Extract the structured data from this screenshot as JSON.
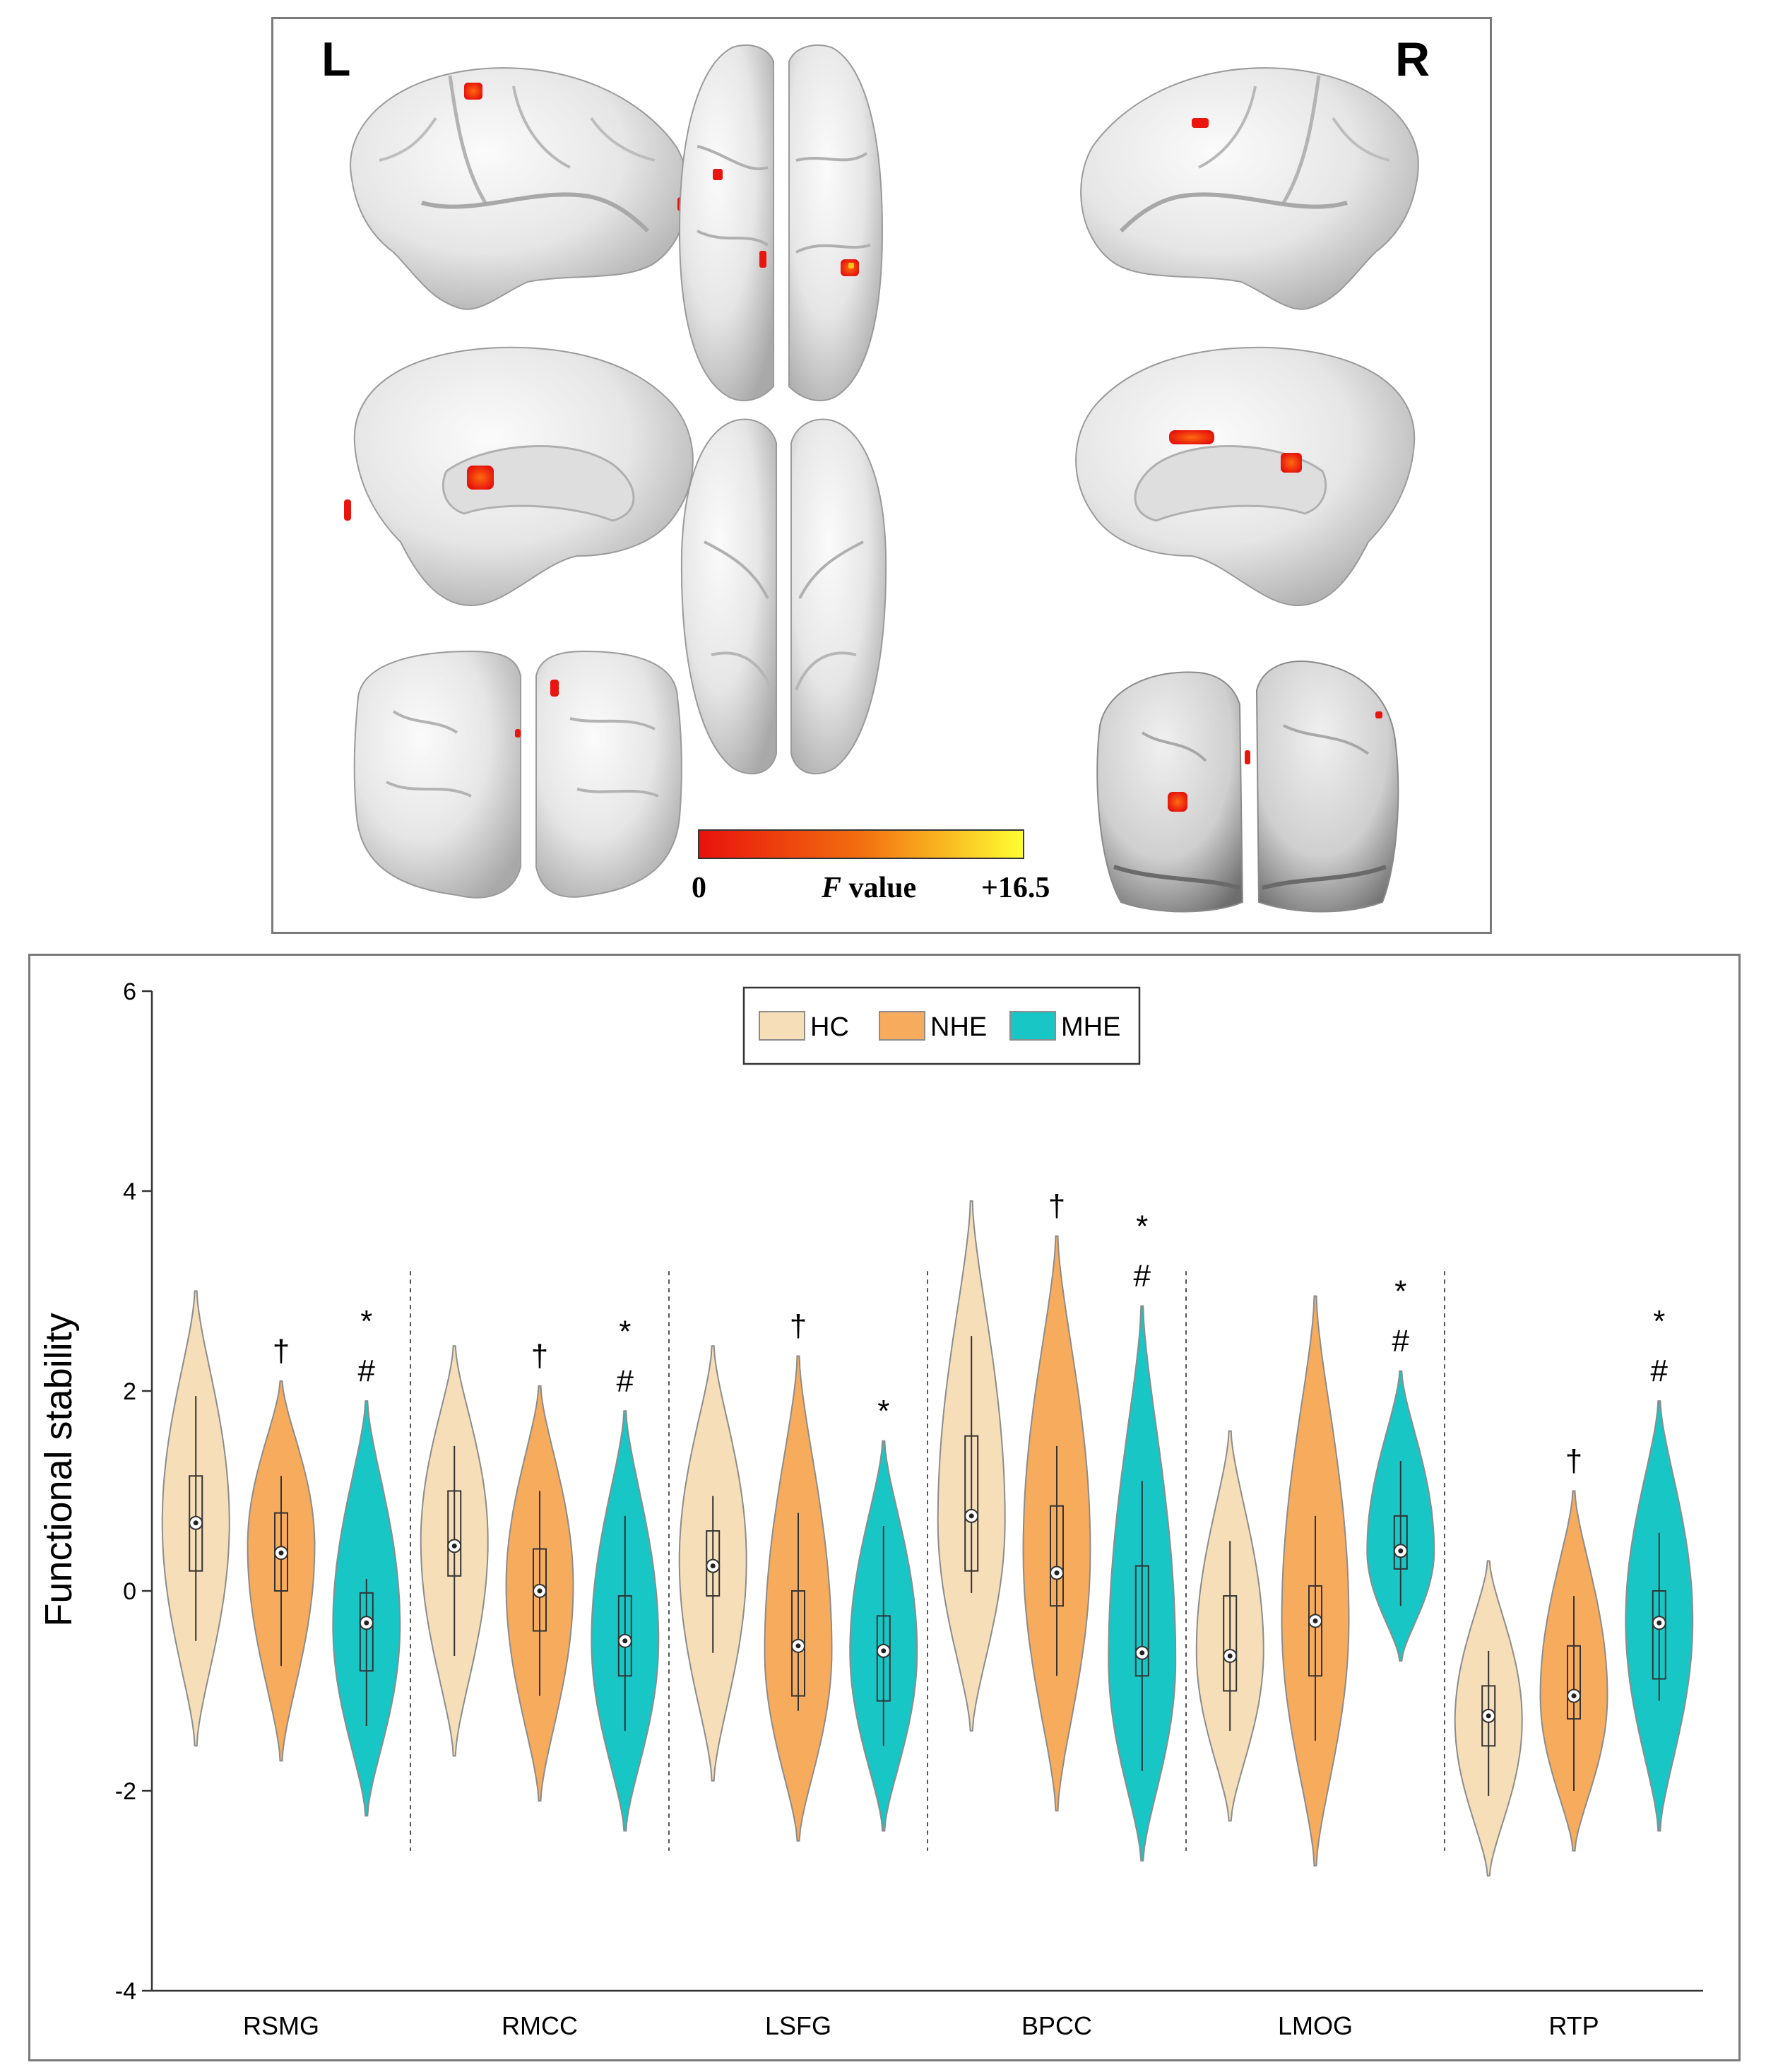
{
  "brain_figure": {
    "left_label": "L",
    "right_label": "R",
    "colorbar": {
      "min_label": "0",
      "variable_italic": "F",
      "variable_rest": " value",
      "max_label": "+16.5",
      "color_low": "#e8120e",
      "color_mid": "#f26f10",
      "color_high": "#ffff33"
    },
    "surface_color": "#e4e4e4",
    "blob_color": "#e8160f"
  },
  "chart_data": {
    "type": "violin",
    "title": "",
    "ylabel": "Functional stability",
    "xlabel": "",
    "ylim": [
      -4,
      6
    ],
    "yticks": [
      -4,
      -2,
      0,
      2,
      4,
      6
    ],
    "grid": false,
    "legend": {
      "placement": "top-center",
      "entries": [
        "HC",
        "NHE",
        "MHE"
      ]
    },
    "categories": [
      "RSMG",
      "RMCC",
      "LSFG",
      "BPCC",
      "LMOG",
      "RTP"
    ],
    "series": [
      {
        "name": "HC",
        "color": "#f5deb8",
        "stats": [
          {
            "min": -1.55,
            "max": 3.0,
            "q1": 0.2,
            "median": 0.68,
            "q3": 1.15,
            "wlo": -0.5,
            "whi": 1.95,
            "peak": 0.68,
            "marks": ""
          },
          {
            "min": -1.65,
            "max": 2.45,
            "q1": 0.15,
            "median": 0.45,
            "q3": 1.0,
            "wlo": -0.65,
            "whi": 1.45,
            "peak": 0.5,
            "marks": ""
          },
          {
            "min": -1.9,
            "max": 2.45,
            "q1": -0.05,
            "median": 0.25,
            "q3": 0.6,
            "wlo": -0.62,
            "whi": 0.95,
            "peak": 0.3,
            "marks": ""
          },
          {
            "min": -1.4,
            "max": 3.9,
            "q1": 0.2,
            "median": 0.75,
            "q3": 1.55,
            "wlo": -0.02,
            "whi": 2.55,
            "peak": 0.7,
            "marks": ""
          },
          {
            "min": -2.3,
            "max": 1.6,
            "q1": -1.0,
            "median": -0.65,
            "q3": -0.05,
            "wlo": -1.4,
            "whi": 0.5,
            "peak": -0.6,
            "marks": ""
          },
          {
            "min": -2.85,
            "max": 0.3,
            "q1": -1.55,
            "median": -1.25,
            "q3": -0.95,
            "wlo": -2.05,
            "whi": -0.6,
            "peak": -1.3,
            "marks": ""
          }
        ]
      },
      {
        "name": "NHE",
        "color": "#f7ab5c",
        "stats": [
          {
            "min": -1.7,
            "max": 2.1,
            "q1": 0.0,
            "median": 0.38,
            "q3": 0.78,
            "wlo": -0.75,
            "whi": 1.15,
            "peak": 0.45,
            "marks": "†"
          },
          {
            "min": -2.1,
            "max": 2.05,
            "q1": -0.4,
            "median": 0.0,
            "q3": 0.42,
            "wlo": -1.05,
            "whi": 1.0,
            "peak": 0.05,
            "marks": "†"
          },
          {
            "min": -2.5,
            "max": 2.35,
            "q1": -1.05,
            "median": -0.55,
            "q3": 0.0,
            "wlo": -1.2,
            "whi": 0.78,
            "peak": -0.6,
            "marks": "†"
          },
          {
            "min": -2.2,
            "max": 3.55,
            "q1": -0.15,
            "median": 0.18,
            "q3": 0.85,
            "wlo": -0.85,
            "whi": 1.45,
            "peak": 0.4,
            "marks": "†"
          },
          {
            "min": -2.75,
            "max": 2.95,
            "q1": -0.85,
            "median": -0.3,
            "q3": 0.05,
            "wlo": -1.5,
            "whi": 0.75,
            "peak": -0.3,
            "marks": ""
          },
          {
            "min": -2.6,
            "max": 1.0,
            "q1": -1.28,
            "median": -1.05,
            "q3": -0.55,
            "wlo": -2.0,
            "whi": -0.05,
            "peak": -1.05,
            "marks": "†"
          }
        ]
      },
      {
        "name": "MHE",
        "color": "#19c6c6",
        "stats": [
          {
            "min": -2.25,
            "max": 1.9,
            "q1": -0.8,
            "median": -0.32,
            "q3": -0.02,
            "wlo": -1.35,
            "whi": 0.12,
            "peak": -0.35,
            "marks": "*\n#"
          },
          {
            "min": -2.4,
            "max": 1.8,
            "q1": -0.85,
            "median": -0.5,
            "q3": -0.05,
            "wlo": -1.4,
            "whi": 0.75,
            "peak": -0.5,
            "marks": "*\n#"
          },
          {
            "min": -2.4,
            "max": 1.5,
            "q1": -1.1,
            "median": -0.6,
            "q3": -0.25,
            "wlo": -1.55,
            "whi": 0.65,
            "peak": -0.6,
            "marks": "*"
          },
          {
            "min": -2.7,
            "max": 2.85,
            "q1": -0.85,
            "median": -0.62,
            "q3": 0.25,
            "wlo": -1.8,
            "whi": 1.1,
            "peak": -0.7,
            "marks": "*\n#"
          },
          {
            "min": -0.7,
            "max": 2.2,
            "q1": 0.22,
            "median": 0.4,
            "q3": 0.75,
            "wlo": -0.15,
            "whi": 1.3,
            "peak": 0.4,
            "marks": "*\n#"
          },
          {
            "min": -2.4,
            "max": 1.9,
            "q1": -0.88,
            "median": -0.32,
            "q3": 0.0,
            "wlo": -1.1,
            "whi": 0.58,
            "peak": -0.3,
            "marks": "*\n#"
          }
        ]
      }
    ]
  }
}
